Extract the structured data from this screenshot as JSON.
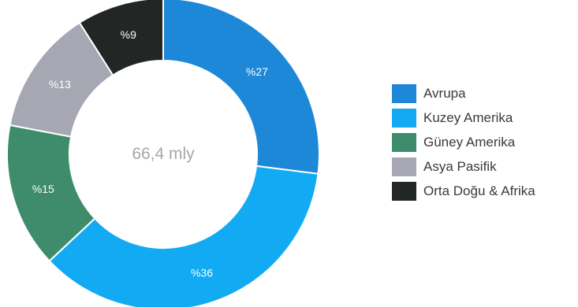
{
  "chart_data": {
    "type": "pie",
    "donut": true,
    "center_label": "66,4 mly",
    "categories": [
      "Avrupa",
      "Kuzey Amerika",
      "Güney Amerika",
      "Asya Pasifik",
      "Orta Doğu & Afrika"
    ],
    "values": [
      27,
      36,
      15,
      13,
      9
    ],
    "value_labels": [
      "%27",
      "%36",
      "%15",
      "%13",
      "%9"
    ],
    "colors": [
      "#1e88d8",
      "#12aaf2",
      "#3e8c6c",
      "#a6a7b2",
      "#222624"
    ],
    "legend_placement": "right"
  }
}
